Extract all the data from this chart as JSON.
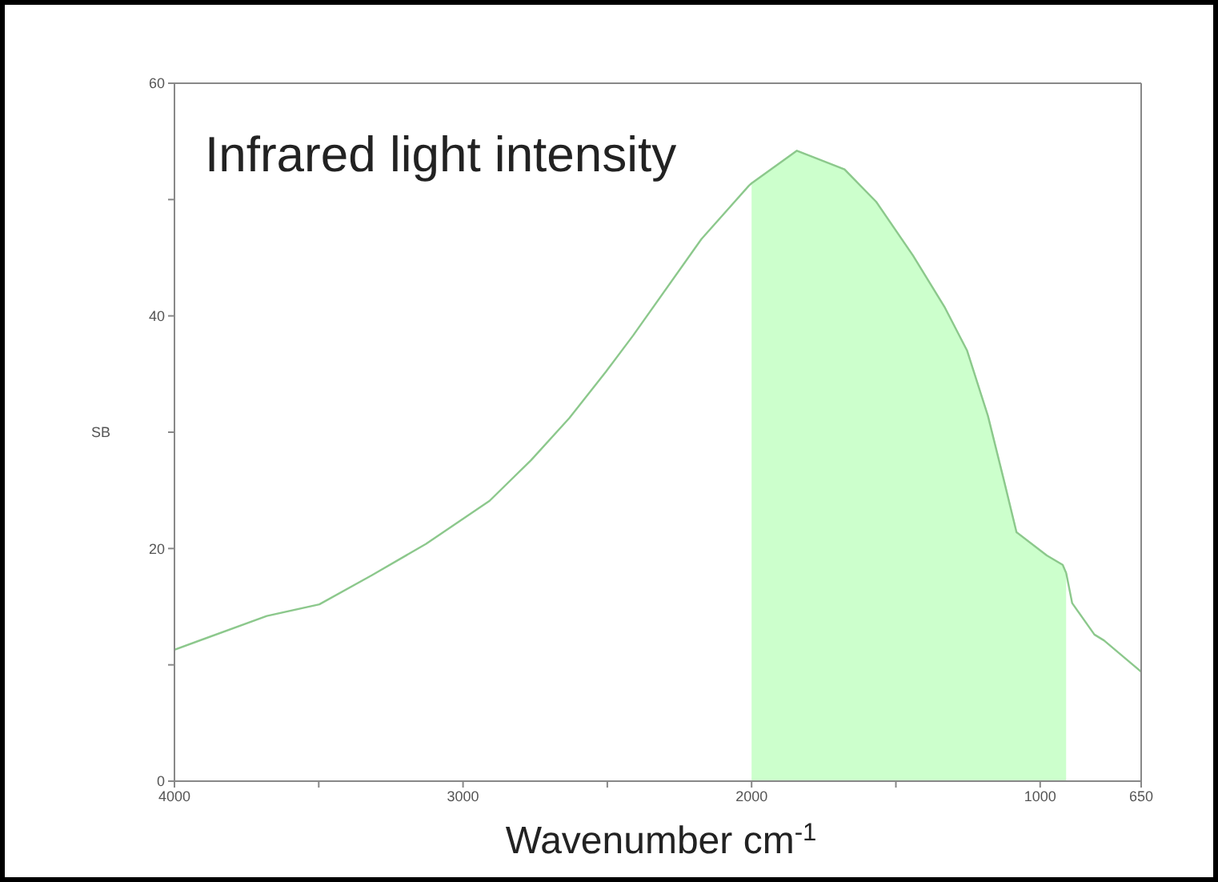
{
  "chart_data": {
    "type": "line",
    "title": "Infrared light intensity",
    "xlabel": "Wavenumber cm$^{-1}$",
    "ylabel": "SB",
    "series": [
      {
        "type": "area",
        "color": "#ccffcc",
        "x": [
          2000,
          1843,
          1678,
          1568,
          1441,
          1330,
          1253,
          1181,
          1126,
          1082,
          977,
          922,
          910
        ],
        "values": [
          51.4,
          54.2,
          52.6,
          49.8,
          45.2,
          40.7,
          37,
          31.4,
          25.9,
          21.4,
          19.4,
          18.6,
          17.9
        ]
      },
      {
        "color": "#8cc88c",
        "x": [
          4000,
          3680,
          3498,
          3316,
          3128,
          2908,
          2764,
          2632,
          2505,
          2411,
          2174,
          2009,
          2000,
          1843,
          1678,
          1568,
          1441,
          1330,
          1253,
          1181,
          1126,
          1082,
          977,
          922,
          910,
          889,
          812,
          779,
          650
        ],
        "values": [
          11.3,
          14.2,
          15.2,
          17.7,
          20.4,
          24.1,
          27.6,
          31.2,
          35.2,
          38.3,
          46.6,
          51.2,
          51.4,
          54.2,
          52.6,
          49.8,
          45.2,
          40.7,
          37,
          31.4,
          25.9,
          21.4,
          19.4,
          18.6,
          17.9,
          15.3,
          12.6,
          12.1,
          9.4
        ]
      }
    ],
    "xlim": [
      4000,
      650
    ],
    "xticks": [
      4000,
      {
        "value": 3500,
        "label": null
      },
      3000,
      {
        "value": 2500,
        "label": null
      },
      2000,
      {
        "value": 1500,
        "label": null
      },
      1000,
      650
    ],
    "ylim": [
      0,
      60
    ],
    "yticks": [
      0,
      {
        "value": 10,
        "label": null
      },
      20,
      {
        "value": 30,
        "label": null
      },
      40,
      {
        "value": 50,
        "label": null
      },
      60
    ],
    "grid": false,
    "legend": false,
    "marker": "none",
    "line_style": "solid"
  }
}
